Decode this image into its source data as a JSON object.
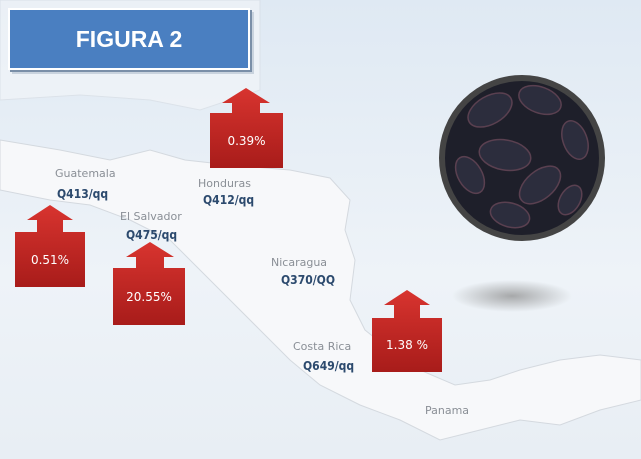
{
  "title": "FIGURA 2",
  "countries": [
    {
      "name": "Guatemala",
      "price": "Q413/qq",
      "change": "0.51%"
    },
    {
      "name": "El Salvador",
      "price": "Q475/qq",
      "change": "20.55%"
    },
    {
      "name": "Honduras",
      "price": "Q412/qq",
      "change": "0.39%"
    },
    {
      "name": "Nicaragua",
      "price": "Q370/QQ"
    },
    {
      "name": "Costa Rica",
      "price": "Q649/qq",
      "change": "1.38 %"
    },
    {
      "name": "Panama"
    }
  ]
}
